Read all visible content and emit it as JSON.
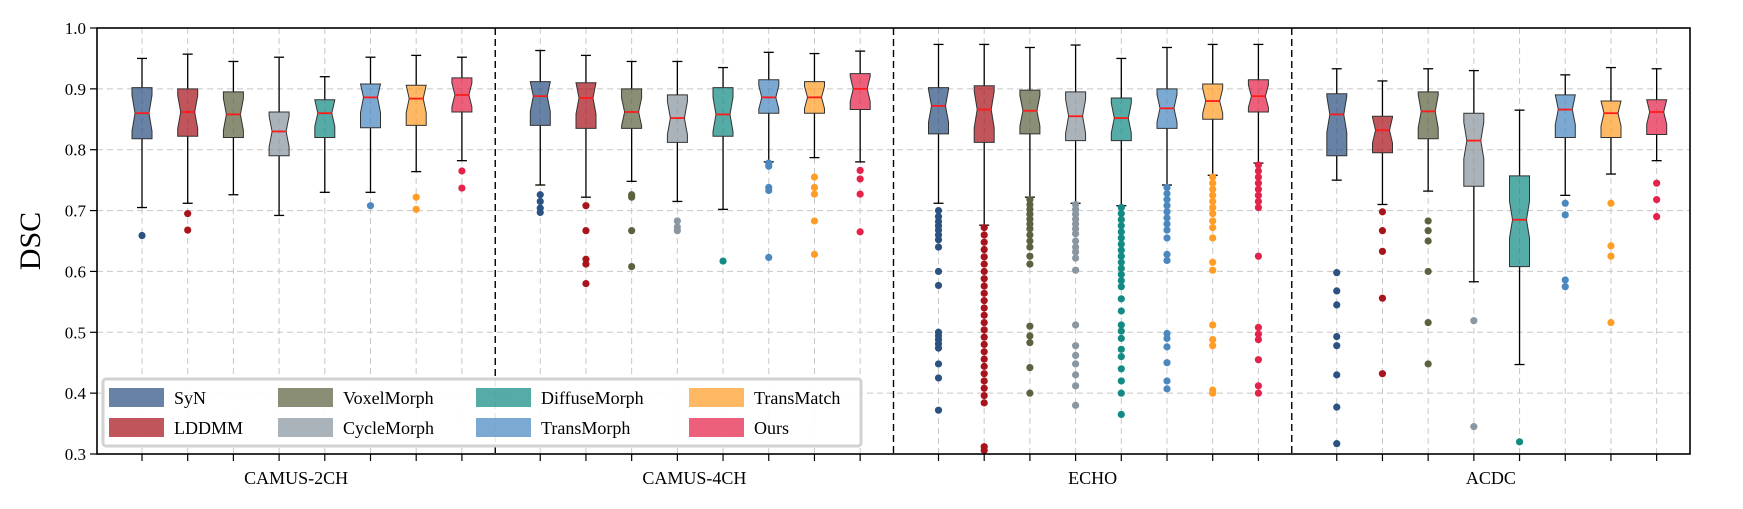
{
  "chart_data": {
    "type": "box",
    "title": "",
    "xlabel": "",
    "ylabel": "DSC",
    "ylim": [
      0.3,
      1.0
    ],
    "yticks": [
      "0.3",
      "0.4",
      "0.5",
      "0.6",
      "0.7",
      "0.8",
      "0.9",
      "1.0"
    ],
    "grid": true,
    "legend_position": "bottom-left",
    "colors": {
      "SyN": "#2c5282",
      "LDDMM": "#a8141c",
      "VoxelMorph": "#5c6240",
      "CycleMorph": "#8a96a0",
      "DiffuseMorph": "#138a84",
      "TransMorph": "#4a88bf",
      "TransMatch": "#ff9d27",
      "Ours": "#e5224a",
      "median": "#ff1a1a"
    },
    "methods": [
      "SyN",
      "LDDMM",
      "VoxelMorph",
      "CycleMorph",
      "DiffuseMorph",
      "TransMorph",
      "TransMatch",
      "Ours"
    ],
    "groups": [
      {
        "name": "CAMUS-2CH",
        "boxes": [
          {
            "method": "SyN",
            "whislo": 0.705,
            "q1": 0.818,
            "med": 0.86,
            "q3": 0.902,
            "whishi": 0.95,
            "fliers": [
              0.659
            ]
          },
          {
            "method": "LDDMM",
            "whislo": 0.712,
            "q1": 0.822,
            "med": 0.862,
            "q3": 0.9,
            "whishi": 0.957,
            "fliers": [
              0.695,
              0.668
            ]
          },
          {
            "method": "VoxelMorph",
            "whislo": 0.726,
            "q1": 0.82,
            "med": 0.858,
            "q3": 0.895,
            "whishi": 0.945,
            "fliers": []
          },
          {
            "method": "CycleMorph",
            "whislo": 0.692,
            "q1": 0.79,
            "med": 0.83,
            "q3": 0.862,
            "whishi": 0.952,
            "fliers": []
          },
          {
            "method": "DiffuseMorph",
            "whislo": 0.73,
            "q1": 0.82,
            "med": 0.86,
            "q3": 0.882,
            "whishi": 0.92,
            "fliers": []
          },
          {
            "method": "TransMorph",
            "whislo": 0.73,
            "q1": 0.836,
            "med": 0.886,
            "q3": 0.908,
            "whishi": 0.952,
            "fliers": [
              0.708
            ]
          },
          {
            "method": "TransMatch",
            "whislo": 0.764,
            "q1": 0.84,
            "med": 0.884,
            "q3": 0.906,
            "whishi": 0.955,
            "fliers": [
              0.722,
              0.702
            ]
          },
          {
            "method": "Ours",
            "whislo": 0.782,
            "q1": 0.862,
            "med": 0.89,
            "q3": 0.918,
            "whishi": 0.952,
            "fliers": [
              0.765,
              0.737
            ]
          }
        ]
      },
      {
        "name": "CAMUS-4CH",
        "boxes": [
          {
            "method": "SyN",
            "whislo": 0.742,
            "q1": 0.84,
            "med": 0.888,
            "q3": 0.912,
            "whishi": 0.963,
            "fliers": [
              0.726,
              0.715,
              0.704,
              0.697
            ]
          },
          {
            "method": "LDDMM",
            "whislo": 0.722,
            "q1": 0.835,
            "med": 0.885,
            "q3": 0.91,
            "whishi": 0.955,
            "fliers": [
              0.708,
              0.667,
              0.62,
              0.612,
              0.58
            ]
          },
          {
            "method": "VoxelMorph",
            "whislo": 0.748,
            "q1": 0.835,
            "med": 0.862,
            "q3": 0.9,
            "whishi": 0.945,
            "fliers": [
              0.726,
              0.722,
              0.667,
              0.608
            ]
          },
          {
            "method": "CycleMorph",
            "whislo": 0.715,
            "q1": 0.812,
            "med": 0.852,
            "q3": 0.89,
            "whishi": 0.945,
            "fliers": [
              0.683,
              0.673,
              0.667
            ]
          },
          {
            "method": "DiffuseMorph",
            "whislo": 0.702,
            "q1": 0.822,
            "med": 0.858,
            "q3": 0.902,
            "whishi": 0.935,
            "fliers": [
              0.617
            ]
          },
          {
            "method": "TransMorph",
            "whislo": 0.78,
            "q1": 0.86,
            "med": 0.886,
            "q3": 0.915,
            "whishi": 0.96,
            "fliers": [
              0.778,
              0.773,
              0.738,
              0.733,
              0.623
            ]
          },
          {
            "method": "TransMatch",
            "whislo": 0.787,
            "q1": 0.86,
            "med": 0.886,
            "q3": 0.912,
            "whishi": 0.958,
            "fliers": [
              0.755,
              0.738,
              0.727,
              0.683,
              0.628
            ]
          },
          {
            "method": "Ours",
            "whislo": 0.78,
            "q1": 0.866,
            "med": 0.9,
            "q3": 0.925,
            "whishi": 0.962,
            "fliers": [
              0.766,
              0.752,
              0.727,
              0.665
            ]
          }
        ]
      },
      {
        "name": "ECHO",
        "boxes": [
          {
            "method": "SyN",
            "whislo": 0.712,
            "q1": 0.826,
            "med": 0.872,
            "q3": 0.902,
            "whishi": 0.973,
            "fliers": [
              0.7,
              0.69,
              0.682,
              0.675,
              0.668,
              0.66,
              0.652,
              0.64,
              0.6,
              0.577,
              0.5,
              0.494,
              0.488,
              0.481,
              0.474,
              0.448,
              0.425,
              0.372
            ]
          },
          {
            "method": "LDDMM",
            "whislo": 0.676,
            "q1": 0.812,
            "med": 0.866,
            "q3": 0.905,
            "whishi": 0.973,
            "fliers": [
              0.672,
              0.66,
              0.648,
              0.636,
              0.624,
              0.612,
              0.6,
              0.588,
              0.576,
              0.564,
              0.552,
              0.54,
              0.528,
              0.516,
              0.504,
              0.492,
              0.48,
              0.468,
              0.456,
              0.444,
              0.432,
              0.42,
              0.408,
              0.396,
              0.384,
              0.312,
              0.306
            ]
          },
          {
            "method": "VoxelMorph",
            "whislo": 0.722,
            "q1": 0.826,
            "med": 0.864,
            "q3": 0.898,
            "whishi": 0.968,
            "fliers": [
              0.718,
              0.71,
              0.702,
              0.694,
              0.686,
              0.678,
              0.67,
              0.66,
              0.65,
              0.64,
              0.625,
              0.612,
              0.51,
              0.494,
              0.483,
              0.442,
              0.4
            ]
          },
          {
            "method": "CycleMorph",
            "whislo": 0.712,
            "q1": 0.815,
            "med": 0.855,
            "q3": 0.895,
            "whishi": 0.972,
            "fliers": [
              0.71,
              0.702,
              0.694,
              0.686,
              0.678,
              0.67,
              0.662,
              0.65,
              0.64,
              0.632,
              0.622,
              0.602,
              0.512,
              0.478,
              0.462,
              0.448,
              0.43,
              0.412,
              0.38
            ]
          },
          {
            "method": "DiffuseMorph",
            "whislo": 0.708,
            "q1": 0.815,
            "med": 0.852,
            "q3": 0.885,
            "whishi": 0.95,
            "fliers": [
              0.705,
              0.695,
              0.685,
              0.675,
              0.665,
              0.655,
              0.645,
              0.635,
              0.625,
              0.615,
              0.605,
              0.595,
              0.585,
              0.575,
              0.555,
              0.535,
              0.512,
              0.502,
              0.49,
              0.472,
              0.46,
              0.44,
              0.42,
              0.4,
              0.365
            ]
          },
          {
            "method": "TransMorph",
            "whislo": 0.742,
            "q1": 0.835,
            "med": 0.868,
            "q3": 0.9,
            "whishi": 0.968,
            "fliers": [
              0.738,
              0.728,
              0.718,
              0.708,
              0.698,
              0.688,
              0.678,
              0.668,
              0.655,
              0.628,
              0.618,
              0.498,
              0.49,
              0.476,
              0.45,
              0.42,
              0.407
            ]
          },
          {
            "method": "TransMatch",
            "whislo": 0.758,
            "q1": 0.85,
            "med": 0.88,
            "q3": 0.908,
            "whishi": 0.973,
            "fliers": [
              0.755,
              0.745,
              0.735,
              0.725,
              0.715,
              0.705,
              0.695,
              0.683,
              0.672,
              0.655,
              0.615,
              0.602,
              0.512,
              0.488,
              0.478,
              0.405,
              0.4
            ]
          },
          {
            "method": "Ours",
            "whislo": 0.778,
            "q1": 0.862,
            "med": 0.888,
            "q3": 0.915,
            "whishi": 0.973,
            "fliers": [
              0.775,
              0.765,
              0.755,
              0.745,
              0.735,
              0.725,
              0.715,
              0.705,
              0.625,
              0.508,
              0.497,
              0.488,
              0.455,
              0.412,
              0.4
            ]
          }
        ]
      },
      {
        "name": "ACDC",
        "boxes": [
          {
            "method": "SyN",
            "whislo": 0.75,
            "q1": 0.79,
            "med": 0.858,
            "q3": 0.892,
            "whishi": 0.933,
            "fliers": [
              0.598,
              0.568,
              0.545,
              0.493,
              0.478,
              0.43,
              0.377,
              0.317
            ]
          },
          {
            "method": "LDDMM",
            "whislo": 0.71,
            "q1": 0.795,
            "med": 0.832,
            "q3": 0.855,
            "whishi": 0.913,
            "fliers": [
              0.698,
              0.667,
              0.633,
              0.556,
              0.432
            ]
          },
          {
            "method": "VoxelMorph",
            "whislo": 0.732,
            "q1": 0.818,
            "med": 0.863,
            "q3": 0.895,
            "whishi": 0.933,
            "fliers": [
              0.683,
              0.667,
              0.65,
              0.6,
              0.516,
              0.448
            ]
          },
          {
            "method": "CycleMorph",
            "whislo": 0.583,
            "q1": 0.74,
            "med": 0.815,
            "q3": 0.86,
            "whishi": 0.93,
            "fliers": [
              0.519,
              0.345
            ]
          },
          {
            "method": "DiffuseMorph",
            "whislo": 0.447,
            "q1": 0.608,
            "med": 0.685,
            "q3": 0.757,
            "whishi": 0.865,
            "fliers": [
              0.32
            ]
          },
          {
            "method": "TransMorph",
            "whislo": 0.725,
            "q1": 0.82,
            "med": 0.866,
            "q3": 0.89,
            "whishi": 0.923,
            "fliers": [
              0.712,
              0.693,
              0.586,
              0.575
            ]
          },
          {
            "method": "TransMatch",
            "whislo": 0.76,
            "q1": 0.82,
            "med": 0.86,
            "q3": 0.88,
            "whishi": 0.935,
            "fliers": [
              0.712,
              0.642,
              0.625,
              0.516
            ]
          },
          {
            "method": "Ours",
            "whislo": 0.782,
            "q1": 0.825,
            "med": 0.862,
            "q3": 0.882,
            "whishi": 0.933,
            "fliers": [
              0.745,
              0.718,
              0.69
            ]
          }
        ]
      }
    ]
  }
}
